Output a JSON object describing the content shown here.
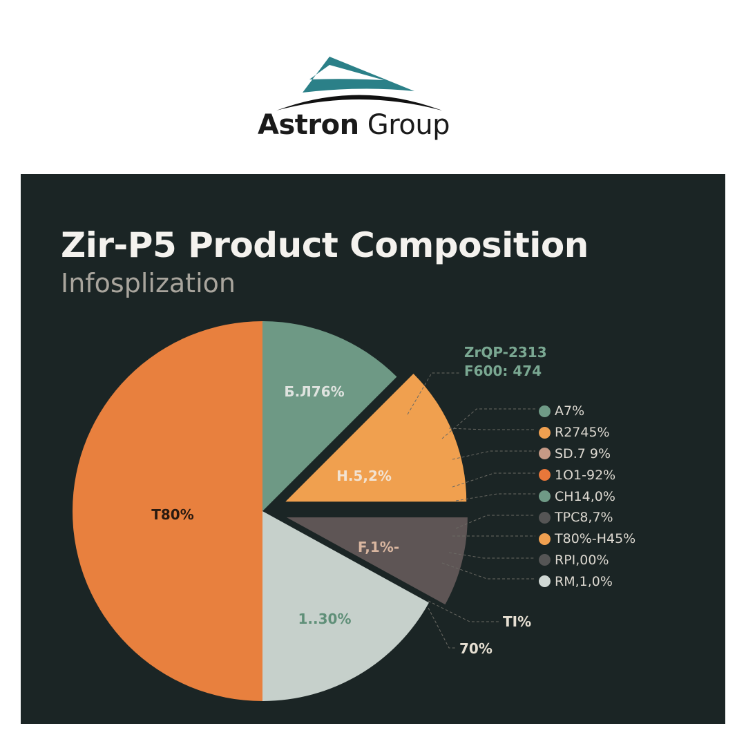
{
  "logo": {
    "text_bold": "Astron",
    "text_regular": "Group",
    "colors": {
      "roof": "#2b8088",
      "arc": "#111111"
    }
  },
  "header": {
    "title": "Zir-P5 Product Composition",
    "subtitle": "Infosplization"
  },
  "chart_data": {
    "type": "pie",
    "title": "Zir-P5 Product Composition",
    "subtitle": "Infosplization",
    "slices": [
      {
        "label": "Б.Л76%",
        "value": 12.5,
        "color": "#6e9985",
        "exploded": false
      },
      {
        "label": "H.5,2%",
        "value": 12.5,
        "color": "#f0a04f",
        "exploded": true
      },
      {
        "label": "F,1%-",
        "value": 8,
        "color": "#5e5555",
        "exploded": true
      },
      {
        "label": "1..30%",
        "value": 17,
        "color": "#c6d0cb",
        "exploded": false
      },
      {
        "label": "T80%",
        "value": 50,
        "color": "#e8803e",
        "exploded": false
      }
    ],
    "callouts": [
      "ZrQP-2313",
      "F600: 474"
    ],
    "external_labels": [
      "TI%",
      "70%"
    ],
    "legend": {
      "placement": "right",
      "items": [
        {
          "label": "A7%",
          "color": "#6f9a86"
        },
        {
          "label": "R2745%",
          "color": "#f0a050"
        },
        {
          "label": "SD.7 9%",
          "color": "#c69a86"
        },
        {
          "label": "1O1-92%",
          "color": "#e8773a"
        },
        {
          "label": "CH14,0%",
          "color": "#6f9a86"
        },
        {
          "label": "TPC8,7%",
          "color": "#555555"
        },
        {
          "label": "T80%-H45%",
          "color": "#f0a050"
        },
        {
          "label": "RPI,00%",
          "color": "#555555"
        },
        {
          "label": "RM,1,0%",
          "color": "#d0d8d4"
        }
      ]
    }
  }
}
